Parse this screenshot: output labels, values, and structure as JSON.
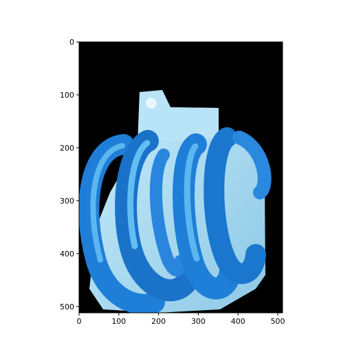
{
  "image": {
    "subject": "blue ring-shaped pastries on a pale blue surface against black background",
    "background_color": "#000000",
    "primary_color": "#1f7fd8",
    "highlight_color": "#5cb7f0",
    "surface_color": "#a9d8ee"
  },
  "axes": {
    "x_range": [
      0,
      512
    ],
    "y_range": [
      512,
      0
    ],
    "x_ticks": [
      {
        "value": 0,
        "label": "0"
      },
      {
        "value": 100,
        "label": "100"
      },
      {
        "value": 200,
        "label": "200"
      },
      {
        "value": 300,
        "label": "300"
      },
      {
        "value": 400,
        "label": "400"
      },
      {
        "value": 500,
        "label": "500"
      }
    ],
    "y_ticks": [
      {
        "value": 0,
        "label": "0"
      },
      {
        "value": 100,
        "label": "100"
      },
      {
        "value": 200,
        "label": "200"
      },
      {
        "value": 300,
        "label": "300"
      },
      {
        "value": 400,
        "label": "400"
      },
      {
        "value": 500,
        "label": "500"
      }
    ]
  }
}
